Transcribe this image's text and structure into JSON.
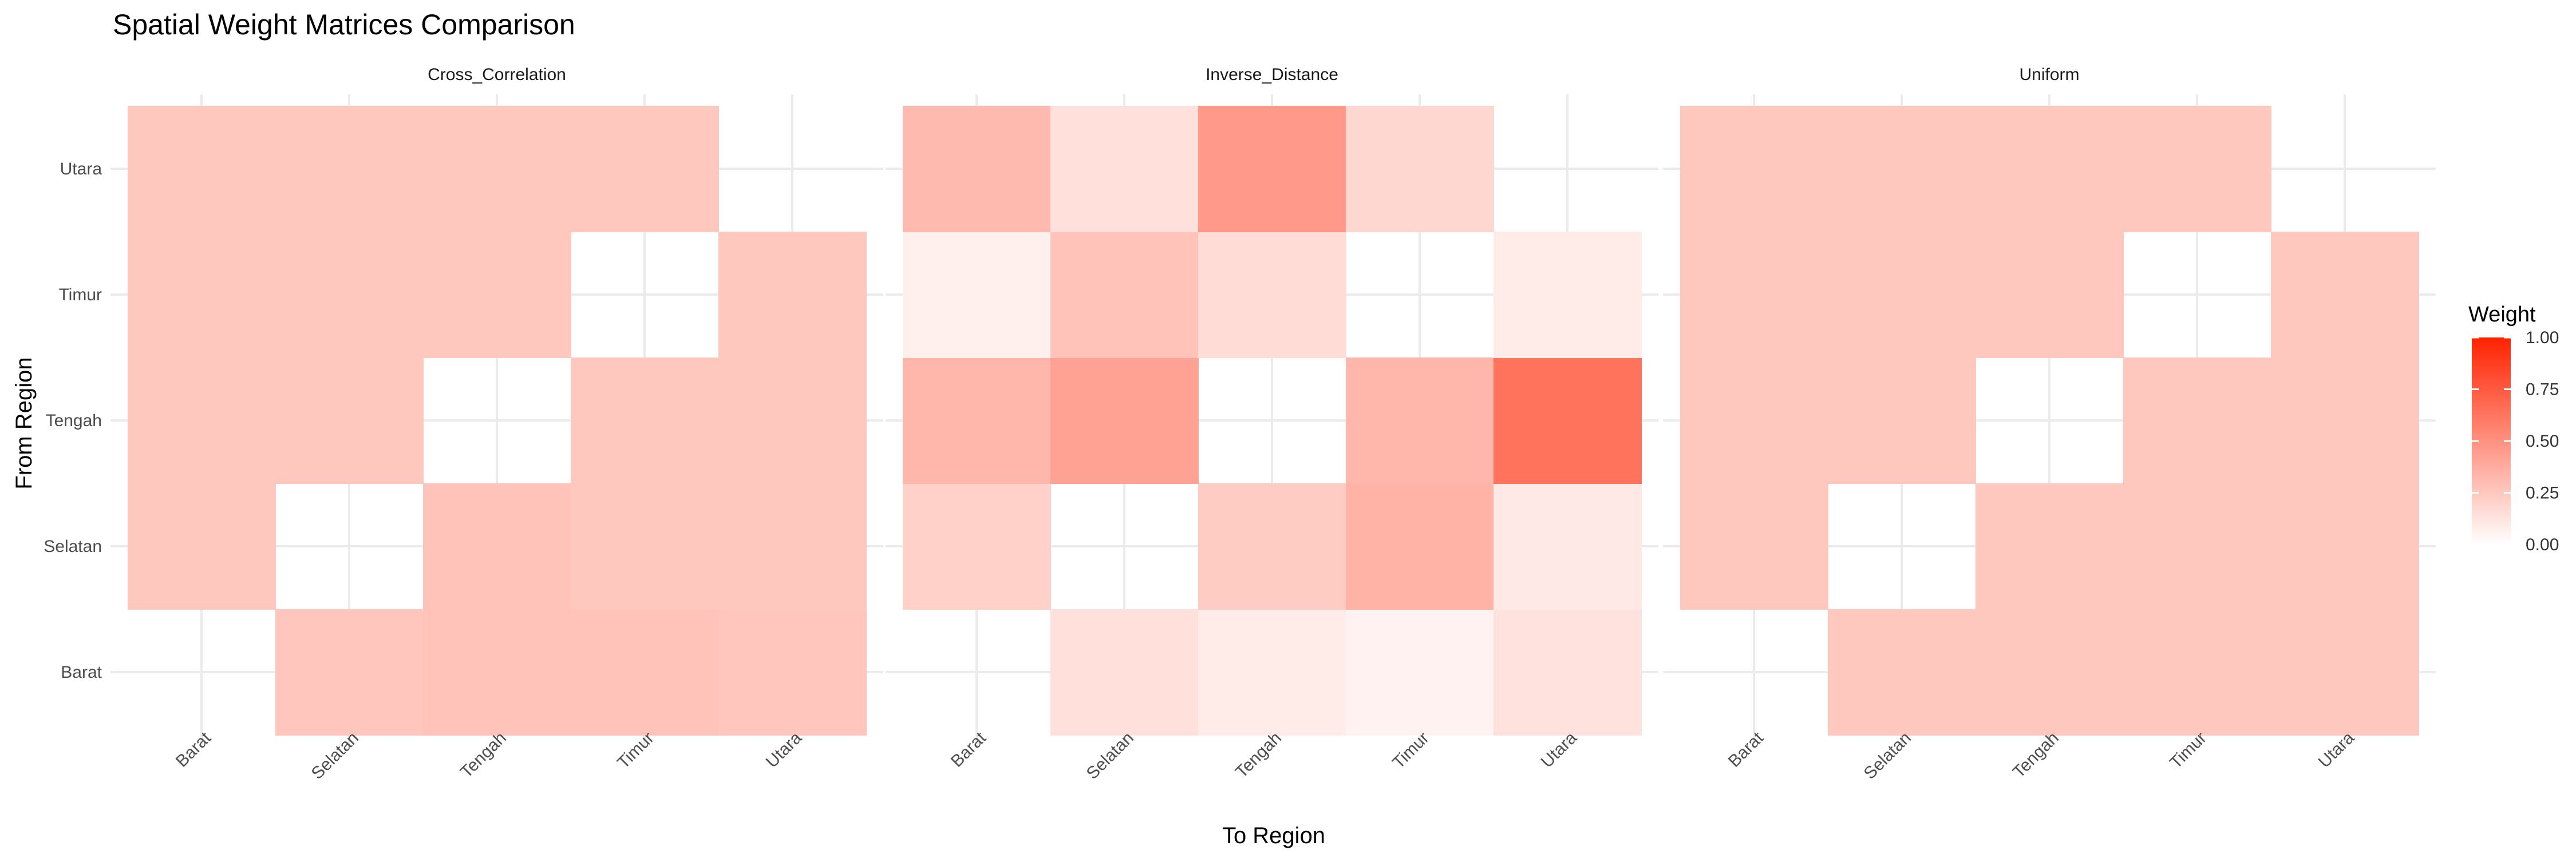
{
  "chart_data": {
    "type": "heatmap",
    "title": "Spatial Weight Matrices Comparison",
    "xlabel": "To Region",
    "ylabel": "From Region",
    "x_categories": [
      "Barat",
      "Selatan",
      "Tengah",
      "Timur",
      "Utara"
    ],
    "y_categories": [
      "Barat",
      "Selatan",
      "Tengah",
      "Timur",
      "Utara"
    ],
    "legend": {
      "title": "Weight",
      "ticks": [
        "0.00",
        "0.25",
        "0.50",
        "0.75",
        "1.00"
      ],
      "range": [
        0,
        1
      ],
      "position": "right"
    },
    "colors": {
      "low": "#ffffff",
      "high": "#ff2200",
      "grid": "#ebebeb"
    },
    "grid": true,
    "panels": [
      {
        "name": "Cross_Correlation",
        "matrix": {
          "Barat": [
            null,
            0.26,
            0.27,
            0.27,
            0.26
          ],
          "Selatan": [
            0.25,
            null,
            0.27,
            0.25,
            0.25
          ],
          "Tengah": [
            0.25,
            0.25,
            null,
            0.25,
            0.25
          ],
          "Timur": [
            0.25,
            0.25,
            0.25,
            null,
            0.25
          ],
          "Utara": [
            0.25,
            0.25,
            0.25,
            0.25,
            null
          ]
        }
      },
      {
        "name": "Inverse_Distance",
        "matrix": {
          "Barat": [
            null,
            0.14,
            0.09,
            0.06,
            0.13
          ],
          "Selatan": [
            0.21,
            null,
            0.23,
            0.35,
            0.1
          ],
          "Tengah": [
            0.33,
            0.42,
            null,
            0.33,
            0.64
          ],
          "Timur": [
            0.07,
            0.27,
            0.16,
            null,
            0.09
          ],
          "Utara": [
            0.31,
            0.14,
            0.46,
            0.18,
            null
          ]
        }
      },
      {
        "name": "Uniform",
        "matrix": {
          "Barat": [
            null,
            0.25,
            0.25,
            0.25,
            0.25
          ],
          "Selatan": [
            0.25,
            null,
            0.25,
            0.25,
            0.25
          ],
          "Tengah": [
            0.25,
            0.25,
            null,
            0.25,
            0.25
          ],
          "Timur": [
            0.25,
            0.25,
            0.25,
            null,
            0.25
          ],
          "Utara": [
            0.25,
            0.25,
            0.25,
            0.25,
            null
          ]
        }
      }
    ]
  }
}
